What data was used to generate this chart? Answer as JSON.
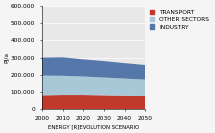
{
  "years": [
    2000,
    2010,
    2020,
    2030,
    2040,
    2050
  ],
  "transport": [
    80000,
    82000,
    82000,
    80000,
    78000,
    76000
  ],
  "other_sectors": [
    115000,
    112000,
    108000,
    104000,
    100000,
    96000
  ],
  "industry": [
    105000,
    108000,
    100000,
    96000,
    90000,
    85000
  ],
  "transport_color": "#c0392b",
  "other_sectors_color": "#a8c8d8",
  "industry_color": "#5577aa",
  "plot_bg_color": "#e8e8e8",
  "background_color": "#f5f5f5",
  "ylabel": "PJ/a",
  "xlabel": "ENERGY [R]EVOLUTION SCENARIO",
  "ylim": [
    0,
    600000
  ],
  "yticks": [
    0,
    100000,
    200000,
    300000,
    400000,
    500000,
    600000
  ],
  "ytick_labels": [
    "0",
    "100.000",
    "200.000",
    "300.000",
    "400.000",
    "500.000",
    "600.000"
  ],
  "legend_labels": [
    "TRANSPORT",
    "OTHER SECTORS",
    "INDUSTRY"
  ],
  "tick_fontsize": 4.2,
  "legend_fontsize": 4.2
}
